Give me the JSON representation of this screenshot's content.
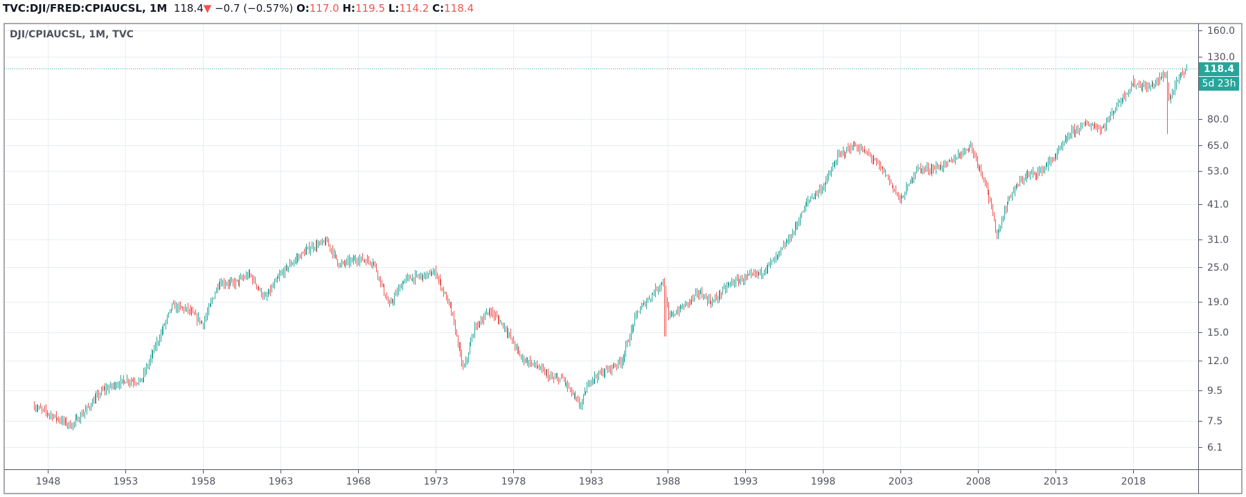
{
  "legend": {
    "symbol": "TVC:DJI/FRED:CPIAUCSL, 1M",
    "last": "118.4",
    "change": "−0.7 (−0.57%)",
    "o_label": "O:",
    "o": "117.0",
    "h_label": "H:",
    "h": "119.5",
    "l_label": "L:",
    "l": "114.2",
    "c_label": "C:",
    "c": "118.4"
  },
  "pane_title": "DJI/CPIAUCSL, 1M, TVC",
  "price_badge": "118.4",
  "countdown_badge": "5d 23h",
  "colors": {
    "up": "#26a69a",
    "down": "#ef5350",
    "grid": "#e8eef2"
  },
  "chart_data": {
    "type": "candlestick",
    "title": "DJI/CPIAUCSL, 1M, TVC",
    "y_scale": "log",
    "ylim": [
      5.2,
      170
    ],
    "xlim": [
      1946.1,
      2023.0
    ],
    "y_ticks": [
      "160.0",
      "130.0",
      "80.0",
      "65.0",
      "53.0",
      "41.0",
      "31.0",
      "25.0",
      "19.0",
      "15.0",
      "12.0",
      "9.5",
      "7.5",
      "6.1"
    ],
    "x_ticks": [
      "1948",
      "1953",
      "1958",
      "1963",
      "1968",
      "1973",
      "1978",
      "1983",
      "1988",
      "1993",
      "1998",
      "2003",
      "2008",
      "2013",
      "2018"
    ],
    "last_price": 118.4,
    "approx_path": [
      [
        1947.1,
        8.4
      ],
      [
        1949.5,
        7.2
      ],
      [
        1950.5,
        8.2
      ],
      [
        1951.5,
        9.5
      ],
      [
        1953,
        10.3
      ],
      [
        1954,
        10.2
      ],
      [
        1955,
        13.7
      ],
      [
        1956,
        18.4
      ],
      [
        1957,
        17.9
      ],
      [
        1958,
        16.0
      ],
      [
        1959,
        22.1
      ],
      [
        1960,
        22
      ],
      [
        1961,
        23.6
      ],
      [
        1962,
        19.5
      ],
      [
        1963,
        23.6
      ],
      [
        1964,
        26.7
      ],
      [
        1965,
        29.3
      ],
      [
        1966,
        30.5
      ],
      [
        1966.8,
        25.4
      ],
      [
        1968,
        26.7
      ],
      [
        1969,
        26
      ],
      [
        1970,
        18.4
      ],
      [
        1971,
        22.7
      ],
      [
        1972.5,
        23.5
      ],
      [
        1973,
        24
      ],
      [
        1974,
        17.8
      ],
      [
        1974.8,
        11.1
      ],
      [
        1975.5,
        15.5
      ],
      [
        1976.5,
        17.8
      ],
      [
        1977.5,
        15.5
      ],
      [
        1978.5,
        12.3
      ],
      [
        1979.5,
        11.5
      ],
      [
        1980.5,
        10.4
      ],
      [
        1981.2,
        10.4
      ],
      [
        1982.3,
        8.4
      ],
      [
        1983,
        10.4
      ],
      [
        1984,
        11.1
      ],
      [
        1985,
        12
      ],
      [
        1986,
        17.5
      ],
      [
        1987.7,
        22.6
      ],
      [
        1988,
        16.8
      ],
      [
        1989,
        18.4
      ],
      [
        1990,
        20.5
      ],
      [
        1990.8,
        18.9
      ],
      [
        1992,
        22
      ],
      [
        1994,
        24
      ],
      [
        1995,
        27
      ],
      [
        1996,
        32.4
      ],
      [
        1997,
        42
      ],
      [
        1998,
        47
      ],
      [
        1999,
        60
      ],
      [
        2000,
        65
      ],
      [
        2001,
        60
      ],
      [
        2002,
        52
      ],
      [
        2003,
        42
      ],
      [
        2004,
        54
      ],
      [
        2005,
        54
      ],
      [
        2006,
        56
      ],
      [
        2007.5,
        65
      ],
      [
        2008.5,
        48
      ],
      [
        2009.2,
        32
      ],
      [
        2010,
        43.5
      ],
      [
        2011,
        51
      ],
      [
        2012,
        53
      ],
      [
        2013,
        60
      ],
      [
        2014,
        72
      ],
      [
        2015,
        77
      ],
      [
        2016,
        74
      ],
      [
        2017,
        90
      ],
      [
        2018,
        106
      ],
      [
        2019,
        102
      ],
      [
        2020.1,
        114
      ],
      [
        2020.3,
        92
      ],
      [
        2021,
        112
      ],
      [
        2021.5,
        118.4
      ]
    ],
    "spike_lows": [
      [
        1987.8,
        14.5
      ],
      [
        2020.2,
        71
      ]
    ]
  }
}
